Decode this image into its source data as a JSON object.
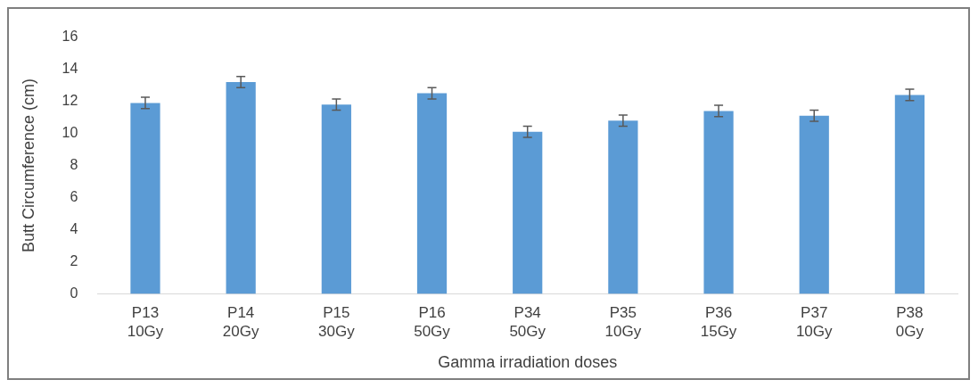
{
  "chart_data": {
    "type": "bar",
    "xlabel": "Gamma irradiation doses",
    "ylabel": "Butt Circumference (cm)",
    "categories": [
      "P13\n10Gy",
      "P14\n20Gy",
      "P15\n30Gy",
      "P16\n50Gy",
      "P34\n50Gy",
      "P35\n10Gy",
      "P36\n15Gy",
      "P37\n10Gy",
      "P38\n0Gy"
    ],
    "values": [
      11.9,
      13.2,
      11.8,
      12.5,
      10.1,
      10.8,
      11.4,
      11.1,
      12.4
    ],
    "errors": [
      0.35,
      0.35,
      0.35,
      0.35,
      0.35,
      0.35,
      0.35,
      0.35,
      0.35
    ],
    "color": "#5b9bd5",
    "ylim": [
      0,
      16
    ],
    "yticks": [
      0,
      2,
      4,
      6,
      8,
      10,
      12,
      14,
      16
    ],
    "grid": false
  }
}
